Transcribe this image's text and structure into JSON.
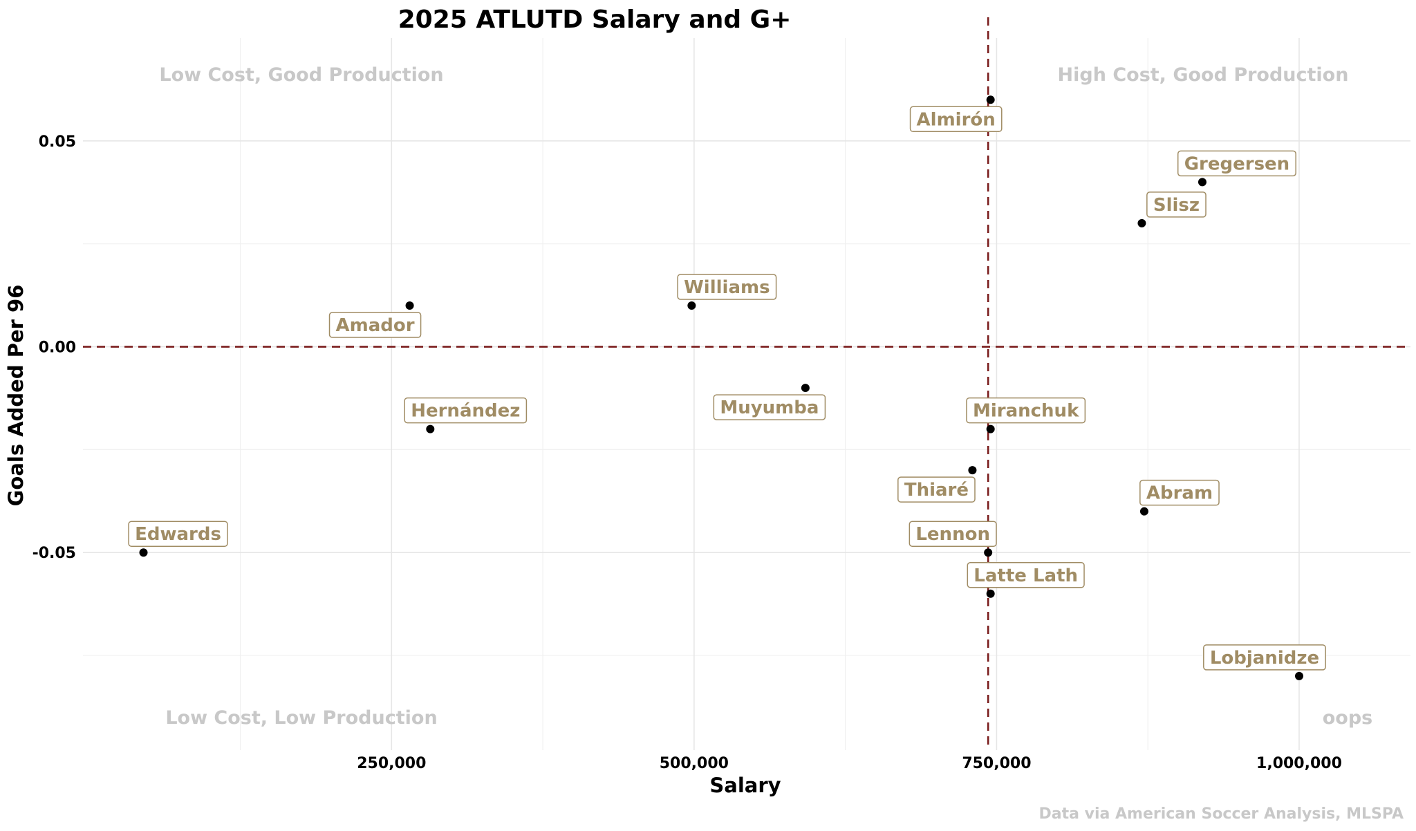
{
  "chart_data": {
    "type": "scatter",
    "title": "2025 ATLUTD Salary and G+",
    "xlabel": "Salary",
    "ylabel": "Goals Added Per 96",
    "xlim": [
      -5000,
      1092000
    ],
    "ylim": [
      -0.098,
      0.075
    ],
    "x_ticks": [
      250000,
      500000,
      750000,
      1000000
    ],
    "x_tick_labels": [
      "250,000",
      "500,000",
      "750,000",
      "1,000,000"
    ],
    "x_minor_ticks": [
      125000,
      375000,
      625000,
      875000
    ],
    "y_ticks": [
      -0.05,
      0.0,
      0.05
    ],
    "y_tick_labels": [
      "-0.05",
      "0.00",
      "0.05"
    ],
    "y_minor_ticks": [
      -0.075,
      -0.025,
      0.025
    ],
    "reference_lines": {
      "vertical_x": 743000,
      "horizontal_y": 0
    },
    "quadrant_labels": {
      "top_left": "Low Cost, Good Production",
      "top_right": "High Cost, Good Production",
      "bottom_left": "Low Cost, Low Production",
      "bottom_right": "oops"
    },
    "caption": "Data via American Soccer Analysis, MLSPA",
    "points": [
      {
        "name": "Almirón",
        "x": 745000,
        "y": 0.06
      },
      {
        "name": "Gregersen",
        "x": 920000,
        "y": 0.04
      },
      {
        "name": "Slisz",
        "x": 870000,
        "y": 0.03
      },
      {
        "name": "Williams",
        "x": 498000,
        "y": 0.01
      },
      {
        "name": "Amador",
        "x": 265000,
        "y": 0.01
      },
      {
        "name": "Muyumba",
        "x": 592000,
        "y": -0.01
      },
      {
        "name": "Hernández",
        "x": 282000,
        "y": -0.02
      },
      {
        "name": "Miranchuk",
        "x": 745000,
        "y": -0.02
      },
      {
        "name": "Thiaré",
        "x": 730000,
        "y": -0.03
      },
      {
        "name": "Abram",
        "x": 872000,
        "y": -0.04
      },
      {
        "name": "Edwards",
        "x": 45000,
        "y": -0.05
      },
      {
        "name": "Lennon",
        "x": 743000,
        "y": -0.05
      },
      {
        "name": "Latte Lath",
        "x": 745000,
        "y": -0.06
      },
      {
        "name": "Lobjanidze",
        "x": 1000000,
        "y": -0.08
      }
    ]
  }
}
